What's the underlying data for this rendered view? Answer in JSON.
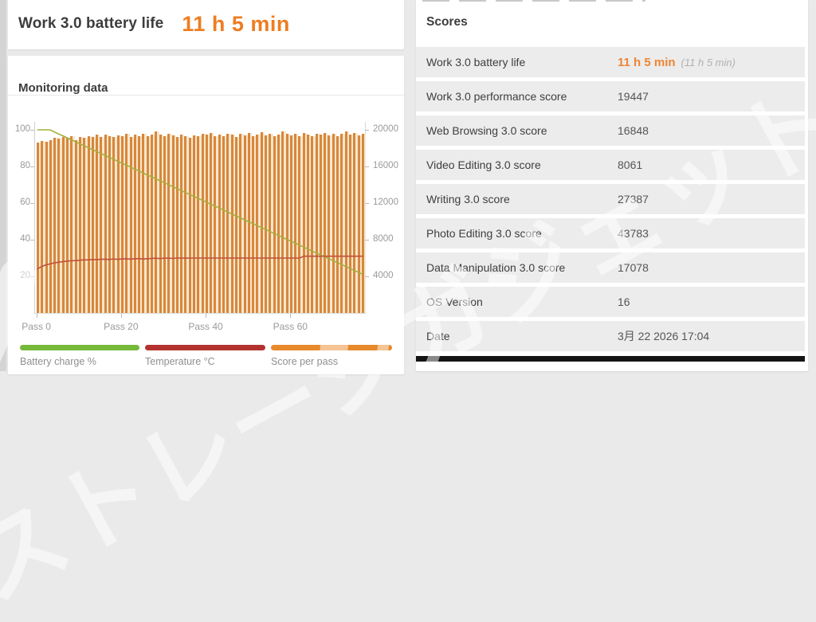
{
  "header": {
    "title": "Work 3.0 battery life",
    "result": "11 h 5 min"
  },
  "monitoring": {
    "title": "Monitoring data"
  },
  "chart_data": {
    "type": "bar",
    "title": "Monitoring data",
    "x_axis_label_prefix": "Pass",
    "x_tick_passes": [
      0,
      20,
      40,
      60
    ],
    "x_tick_labels": [
      "Pass 0",
      "Pass 20",
      "Pass 40",
      "Pass 60"
    ],
    "left_axis_ticks": [
      100,
      80,
      60,
      40,
      20
    ],
    "left_axis_range": [
      0,
      104
    ],
    "right_axis_ticks": [
      20000,
      16000,
      12000,
      8000,
      4000
    ],
    "right_axis_range": [
      0,
      20800
    ],
    "passes": 78,
    "series": [
      {
        "name": "Battery charge %",
        "type": "line",
        "color": "#a4b13c",
        "legend_color": "#76b93a",
        "axis": "left",
        "values": [
          100,
          100,
          100,
          100,
          98.9,
          97.8,
          96.8,
          95.7,
          94.6,
          93.6,
          92.5,
          91.4,
          90.4,
          89.3,
          88.2,
          87.2,
          86.1,
          85.0,
          84.0,
          82.9,
          81.8,
          80.8,
          79.7,
          78.6,
          77.6,
          76.5,
          75.4,
          74.4,
          73.3,
          72.2,
          71.2,
          70.1,
          69.0,
          68.0,
          66.9,
          65.8,
          64.8,
          63.7,
          62.6,
          61.6,
          60.5,
          59.4,
          58.4,
          57.3,
          56.2,
          55.2,
          54.1,
          53.0,
          52.0,
          50.9,
          49.8,
          48.8,
          47.7,
          46.6,
          45.6,
          44.5,
          43.4,
          42.4,
          41.3,
          40.2,
          39.2,
          38.1,
          37.0,
          36.0,
          34.9,
          33.8,
          32.8,
          31.7,
          30.6,
          29.6,
          28.5,
          27.4,
          26.4,
          25.3,
          24.2,
          23.2,
          22.1,
          21.0
        ]
      },
      {
        "name": "Temperature °C",
        "type": "line",
        "color": "#c1503c",
        "legend_color": "#b4322e",
        "axis": "left",
        "values": [
          24.0,
          25.3,
          26.2,
          26.8,
          27.3,
          27.7,
          28.0,
          28.3,
          28.5,
          28.6,
          28.8,
          29.0,
          29.0,
          29.2,
          29.1,
          29.3,
          29.4,
          29.2,
          29.5,
          29.3,
          29.5,
          29.6,
          29.4,
          29.6,
          29.7,
          29.5,
          29.6,
          29.8,
          29.9,
          29.7,
          29.9,
          30.0,
          29.8,
          30.0,
          30.0,
          29.9,
          30.0,
          30.0,
          30.0,
          30.0,
          30.0,
          30.0,
          30.0,
          30.0,
          30.0,
          30.0,
          30.0,
          30.0,
          30.0,
          30.0,
          30.0,
          30.0,
          30.0,
          30.0,
          30.0,
          30.0,
          30.0,
          30.0,
          30.0,
          30.0,
          30.0,
          30.0,
          30.0,
          31.0,
          31.0,
          31.0,
          31.0,
          31.0,
          31.0,
          31.0,
          31.0,
          31.0,
          31.0,
          31.0,
          31.0,
          31.0,
          31.0,
          31.0
        ]
      },
      {
        "name": "Score per pass",
        "type": "bar",
        "color": "#d8873b",
        "color_light": "#f6e7cf",
        "legend_color": "#e8892b",
        "axis": "right",
        "values": [
          18650,
          18800,
          18700,
          18900,
          19150,
          19050,
          19250,
          19150,
          19300,
          18900,
          19250,
          19100,
          19350,
          19200,
          19450,
          19250,
          19500,
          19350,
          19200,
          19400,
          19300,
          19550,
          19250,
          19450,
          19350,
          19600,
          19300,
          19500,
          19800,
          19450,
          19350,
          19550,
          19400,
          19250,
          19500,
          19350,
          19150,
          19400,
          19300,
          19550,
          19450,
          19700,
          19350,
          19500,
          19300,
          19600,
          19450,
          19250,
          19550,
          19400,
          19650,
          19350,
          19500,
          19750,
          19400,
          19550,
          19300,
          19500,
          19850,
          19600,
          19400,
          19550,
          19350,
          19650,
          19500,
          19300,
          19550,
          19450,
          19700,
          19400,
          19600,
          19350,
          19550,
          19850,
          19500,
          19650,
          19400,
          19600
        ]
      }
    ],
    "legend": [
      {
        "label": "Battery charge %",
        "color": "#76b93a"
      },
      {
        "label": "Temperature °C",
        "color": "#b4322e"
      },
      {
        "label": "Score per pass",
        "color": "#e8892b"
      }
    ],
    "legend_position": "bottom"
  },
  "scores": {
    "title": "Scores",
    "rows": [
      {
        "label": "Work 3.0 battery life",
        "value": "11 h 5 min",
        "note": "(11 h 5 min)"
      },
      {
        "label": "Work 3.0 performance score",
        "value": "19447"
      },
      {
        "label": "Web Browsing 3.0 score",
        "value": "16848"
      },
      {
        "label": "Video Editing 3.0 score",
        "value": "8061"
      },
      {
        "label": "Writing 3.0 score",
        "value": "27387"
      },
      {
        "label": "Photo Editing 3.0 score",
        "value": "43783"
      },
      {
        "label": "Data Manipulation 3.0 score",
        "value": "17078"
      },
      {
        "label": "OS Version",
        "value": "16"
      },
      {
        "label": "Date",
        "value": "3月 22 2026 17:04"
      }
    ]
  },
  "watermark": {
    "text": "ストレージガジェット"
  },
  "colors": {
    "accent_orange": "#ee7d22",
    "value_orange": "#ee8433",
    "bar_orange": "#d8873b",
    "battery_line_green": "#a4b13c",
    "temperature_line_red": "#c1503c",
    "row_background": "#ececec",
    "black_bar": "#141414"
  }
}
